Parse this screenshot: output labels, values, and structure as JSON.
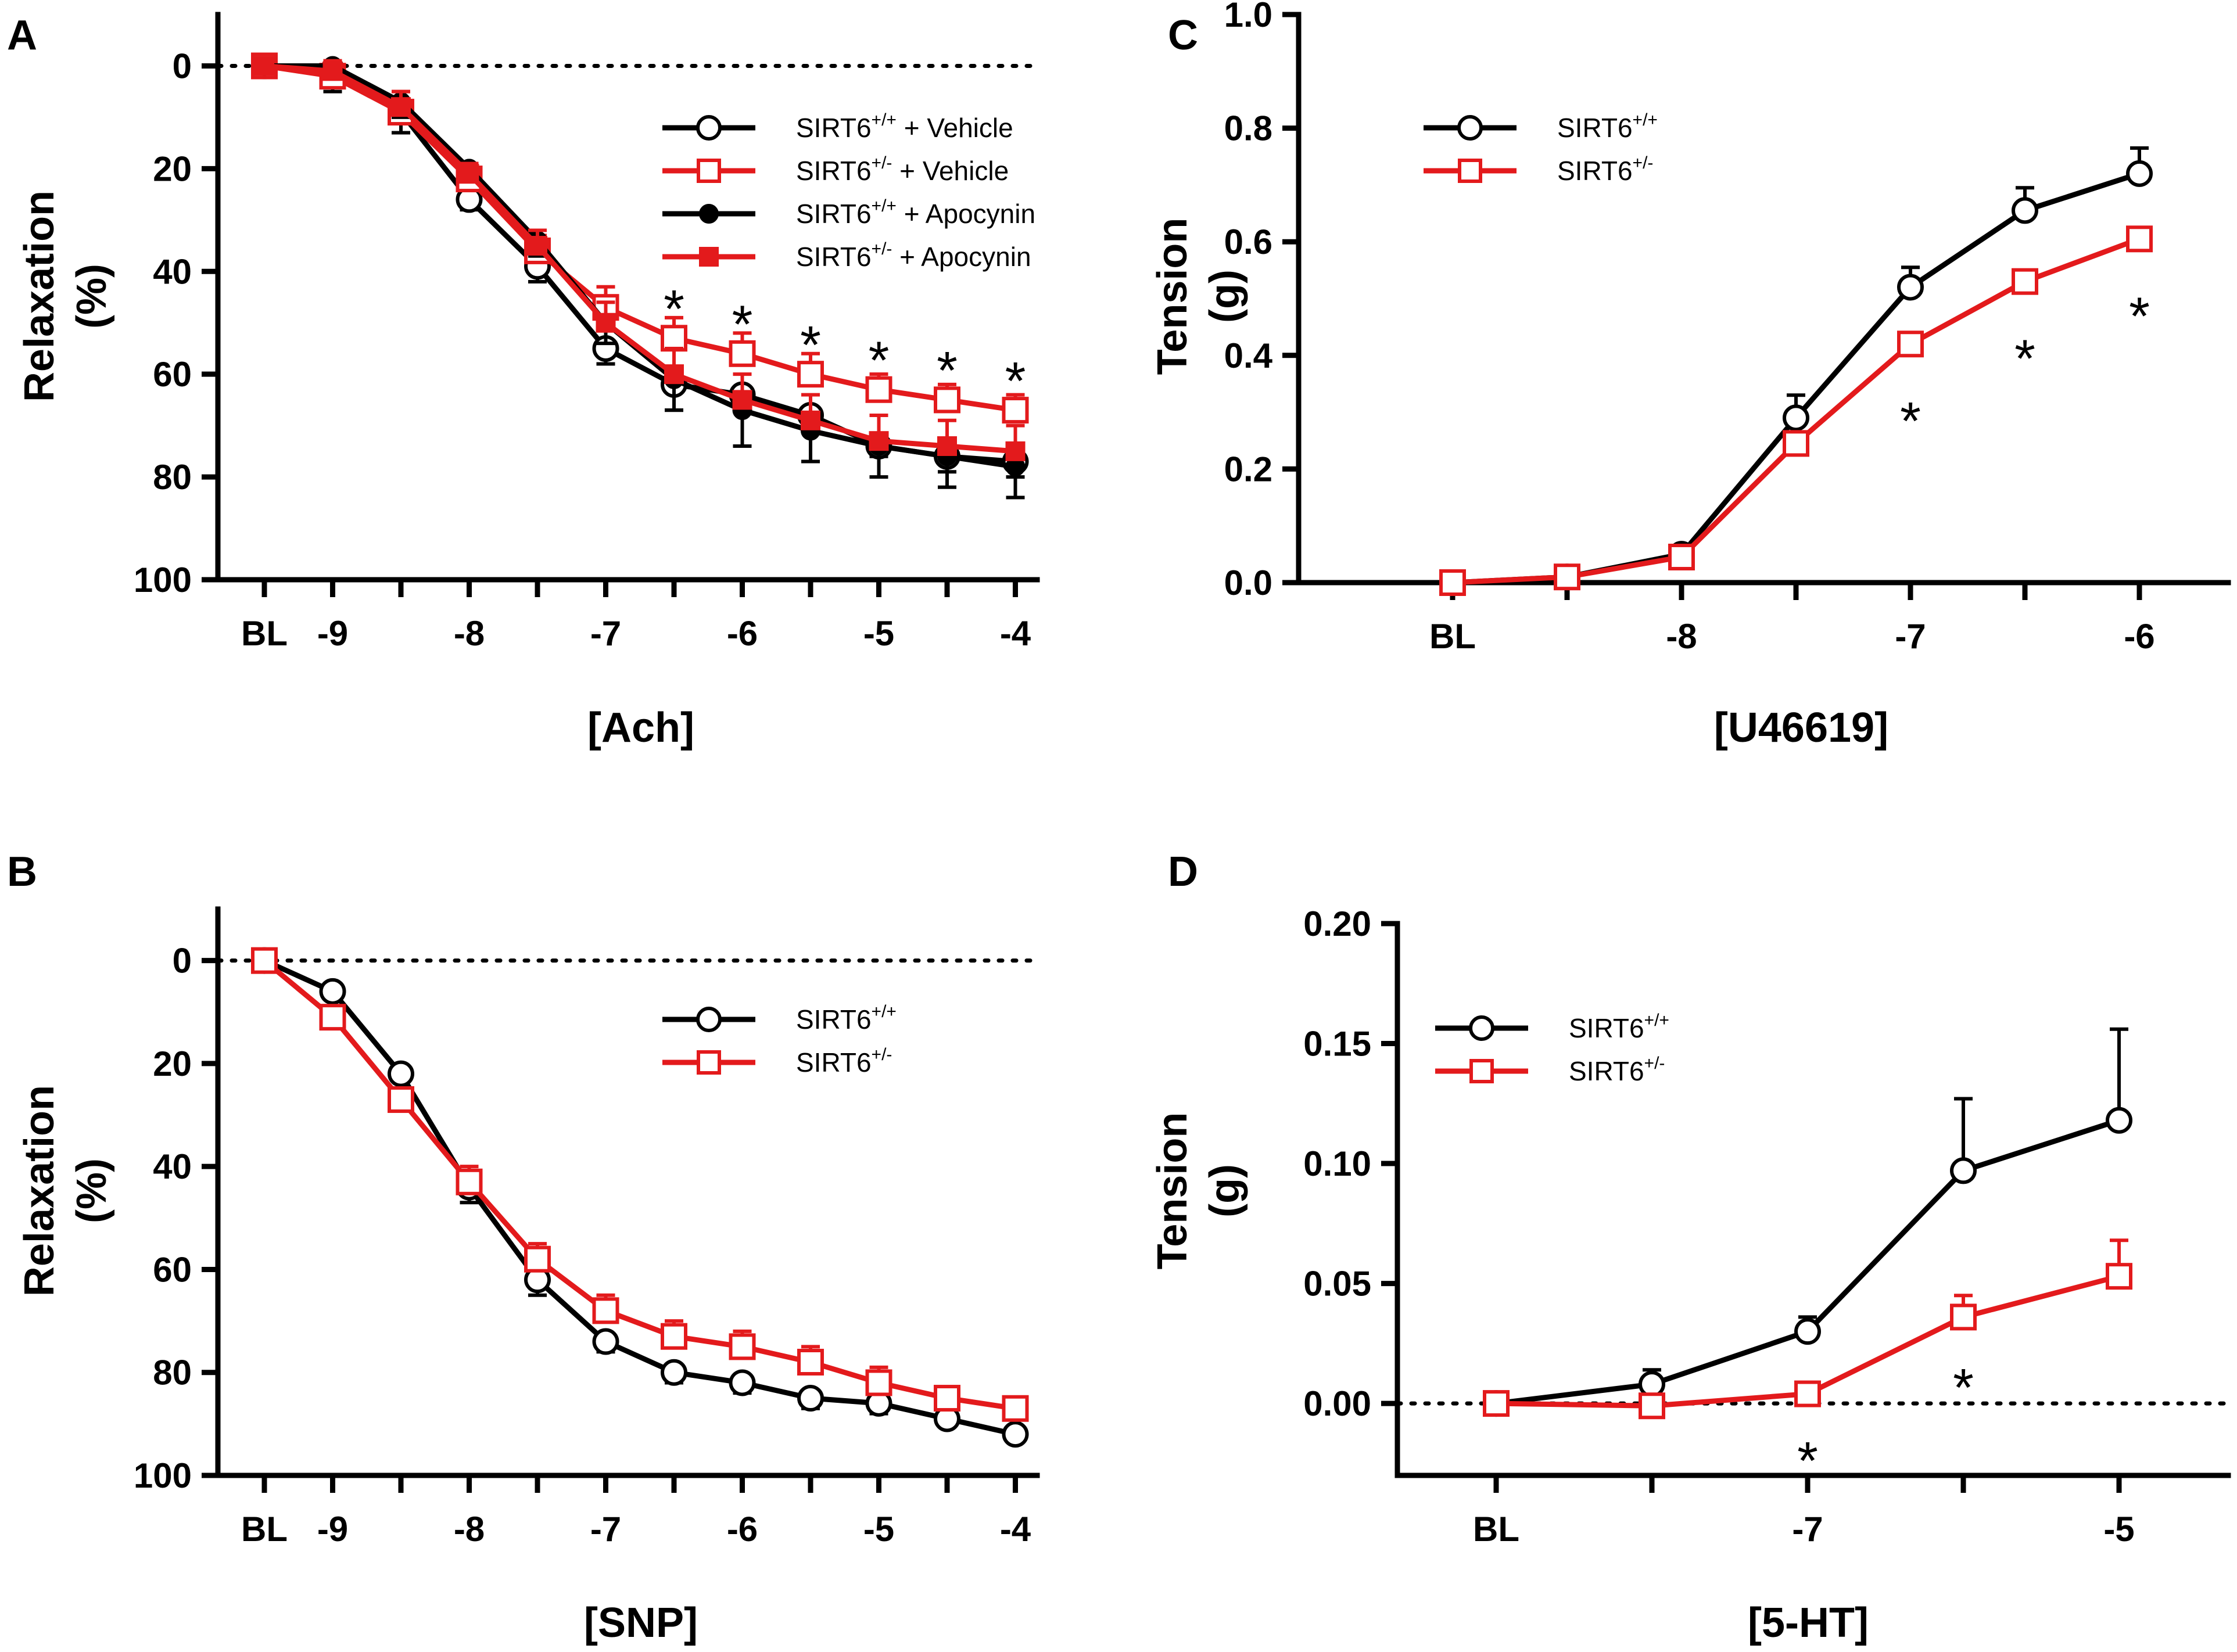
{
  "colors": {
    "wt": "#000000",
    "het": "#e31a1c"
  },
  "chart_data": [
    {
      "panel": "A",
      "type": "line",
      "title": "",
      "xlabel": "[Ach]",
      "ylabel_line1": "Relaxation",
      "ylabel_line2": "(%)",
      "y_inverted": true,
      "ylim": [
        -10,
        100
      ],
      "yticks": [
        0,
        20,
        40,
        60,
        80,
        100
      ],
      "ytick_labels": [
        "0",
        "20",
        "40",
        "60",
        "80",
        "100"
      ],
      "x": [
        0,
        1,
        2,
        3,
        4,
        5,
        6,
        7,
        8,
        9,
        10,
        11
      ],
      "xticks": [
        0,
        1,
        2,
        3,
        4,
        5,
        6,
        7,
        8,
        9,
        10,
        11
      ],
      "xtick_labels": [
        "BL",
        "-9",
        "",
        "-8",
        "",
        "-7",
        "",
        "-6",
        "",
        "-5",
        "",
        "-4"
      ],
      "zero_line": 0,
      "legend_position": "top-right",
      "series": [
        {
          "key": "wt",
          "label": "SIRT6",
          "sup": "+/+",
          "suffix": " + Vehicle",
          "marker": "circle-open",
          "color": "#000000",
          "values": [
            0,
            1,
            9,
            26,
            39,
            55,
            62,
            64,
            68,
            74,
            76,
            77
          ],
          "errors": [
            0,
            4,
            4,
            2,
            3,
            3,
            5,
            3,
            2,
            2,
            3,
            3
          ]
        },
        {
          "key": "het",
          "label": "SIRT6",
          "sup": "+/-",
          "suffix": " + Vehicle",
          "marker": "square-open",
          "color": "#e31a1c",
          "values": [
            0,
            2,
            9,
            22,
            36,
            47,
            53,
            56,
            60,
            63,
            65,
            67
          ],
          "errors": [
            0,
            2,
            4,
            3,
            3,
            4,
            4,
            4,
            4,
            3,
            3,
            3
          ]
        },
        {
          "key": "wt-apo",
          "label": "SIRT6",
          "sup": "+/+",
          "suffix": " + Apocynin",
          "marker": "circle-filled",
          "color": "#000000",
          "values": [
            0,
            0,
            7,
            20,
            34,
            50,
            61,
            67,
            71,
            74,
            76,
            78
          ],
          "errors": [
            0,
            2,
            3,
            2,
            3,
            4,
            6,
            7,
            6,
            6,
            6,
            6
          ]
        },
        {
          "key": "het-apo",
          "label": "SIRT6",
          "sup": "+/-",
          "suffix": " + Apocynin",
          "marker": "square-filled",
          "color": "#e31a1c",
          "values": [
            0,
            1,
            8,
            21,
            35,
            50,
            60,
            65,
            69,
            73,
            74,
            75
          ],
          "errors": [
            0,
            2,
            3,
            2,
            3,
            4,
            5,
            5,
            5,
            5,
            5,
            5
          ]
        }
      ],
      "stars": [
        {
          "x": 6,
          "y": 45,
          "text": "*"
        },
        {
          "x": 7,
          "y": 48,
          "text": "*"
        },
        {
          "x": 8,
          "y": 52,
          "text": "*"
        },
        {
          "x": 9,
          "y": 55,
          "text": "*"
        },
        {
          "x": 10,
          "y": 57,
          "text": "*"
        },
        {
          "x": 11,
          "y": 59,
          "text": "*"
        }
      ]
    },
    {
      "panel": "B",
      "type": "line",
      "title": "",
      "xlabel": "[SNP]",
      "ylabel_line1": "Relaxation",
      "ylabel_line2": "(%)",
      "y_inverted": true,
      "ylim": [
        -10,
        100
      ],
      "yticks": [
        0,
        20,
        40,
        60,
        80,
        100
      ],
      "ytick_labels": [
        "0",
        "20",
        "40",
        "60",
        "80",
        "100"
      ],
      "x": [
        0,
        1,
        2,
        3,
        4,
        5,
        6,
        7,
        8,
        9,
        10,
        11
      ],
      "xticks": [
        0,
        1,
        2,
        3,
        4,
        5,
        6,
        7,
        8,
        9,
        10,
        11
      ],
      "xtick_labels": [
        "BL",
        "-9",
        "",
        "-8",
        "",
        "-7",
        "",
        "-6",
        "",
        "-5",
        "",
        "-4"
      ],
      "zero_line": 0,
      "legend_position": "top-right",
      "series": [
        {
          "key": "wt",
          "label": "SIRT6",
          "sup": "+/+",
          "suffix": "",
          "marker": "circle-open",
          "color": "#000000",
          "values": [
            0,
            6,
            22,
            44,
            62,
            74,
            80,
            82,
            85,
            86,
            89,
            92
          ],
          "errors": [
            0,
            1,
            1,
            3,
            3,
            2,
            2,
            2,
            2,
            2,
            1,
            1
          ]
        },
        {
          "key": "het",
          "label": "SIRT6",
          "sup": "+/-",
          "suffix": "",
          "marker": "square-open",
          "color": "#e31a1c",
          "values": [
            0,
            11,
            27,
            43,
            58,
            68,
            73,
            75,
            78,
            82,
            85,
            87
          ],
          "errors": [
            0,
            2,
            2,
            3,
            3,
            3,
            3,
            3,
            3,
            3,
            2,
            2
          ]
        }
      ],
      "stars": []
    },
    {
      "panel": "C",
      "type": "line",
      "title": "",
      "xlabel": "[U46619]",
      "ylabel_line1": "Tension",
      "ylabel_line2": "(g)",
      "y_inverted": false,
      "ylim": [
        0,
        1.0
      ],
      "yticks": [
        0,
        0.2,
        0.4,
        0.6,
        0.8,
        1.0
      ],
      "ytick_labels": [
        "0.0",
        "0.2",
        "0.4",
        "0.6",
        "0.8",
        "1.0"
      ],
      "x": [
        0,
        1,
        2,
        3,
        4,
        5,
        6
      ],
      "xticks": [
        0,
        1,
        2,
        3,
        4,
        5,
        6
      ],
      "xtick_labels": [
        "BL",
        "",
        "-8",
        "",
        "-7",
        "",
        "-6"
      ],
      "zero_line": null,
      "legend_position": "top-left",
      "series": [
        {
          "key": "wt",
          "label": "SIRT6",
          "sup": "+/+",
          "suffix": "",
          "marker": "circle-open",
          "color": "#000000",
          "values": [
            0,
            0.01,
            0.05,
            0.29,
            0.52,
            0.655,
            0.72
          ],
          "errors": [
            0,
            0.005,
            0.01,
            0.04,
            0.035,
            0.04,
            0.045
          ]
        },
        {
          "key": "het",
          "label": "SIRT6",
          "sup": "+/-",
          "suffix": "",
          "marker": "square-open",
          "color": "#e31a1c",
          "values": [
            0,
            0.01,
            0.045,
            0.245,
            0.42,
            0.53,
            0.605
          ],
          "errors": [
            0,
            0.005,
            0.01,
            0.02,
            0.02,
            0.02,
            0.02
          ]
        }
      ],
      "stars": [
        {
          "x": 4,
          "y": 0.305,
          "text": "*"
        },
        {
          "x": 5,
          "y": 0.415,
          "text": "*"
        },
        {
          "x": 6,
          "y": 0.49,
          "text": "*"
        }
      ]
    },
    {
      "panel": "D",
      "type": "line",
      "title": "",
      "xlabel": "[5-HT]",
      "ylabel_line1": "Tension",
      "ylabel_line2": "(g)",
      "y_inverted": false,
      "ylim": [
        -0.03,
        0.2
      ],
      "yticks": [
        0,
        0.05,
        0.1,
        0.15,
        0.2
      ],
      "ytick_labels": [
        "0.00",
        "0.05",
        "0.10",
        "0.15",
        "0.20"
      ],
      "x": [
        0,
        1,
        2,
        3,
        4
      ],
      "xticks": [
        0,
        1,
        2,
        3,
        4
      ],
      "xtick_labels": [
        "BL",
        "",
        "-7",
        "",
        "-5"
      ],
      "zero_line": 0,
      "legend_position": "top-left",
      "series": [
        {
          "key": "wt",
          "label": "SIRT6",
          "sup": "+/+",
          "suffix": "",
          "marker": "circle-open",
          "color": "#000000",
          "values": [
            0,
            0.008,
            0.03,
            0.097,
            0.118
          ],
          "errors": [
            0,
            0.006,
            0.006,
            0.03,
            0.038
          ]
        },
        {
          "key": "het",
          "label": "SIRT6",
          "sup": "+/-",
          "suffix": "",
          "marker": "square-open",
          "color": "#e31a1c",
          "values": [
            0,
            -0.001,
            0.004,
            0.036,
            0.053
          ],
          "errors": [
            0,
            0.002,
            0.002,
            0.009,
            0.015
          ]
        }
      ],
      "stars": [
        {
          "x": 2,
          "y": -0.019,
          "text": "*"
        },
        {
          "x": 3,
          "y": 0.0115,
          "text": "*"
        }
      ]
    }
  ]
}
